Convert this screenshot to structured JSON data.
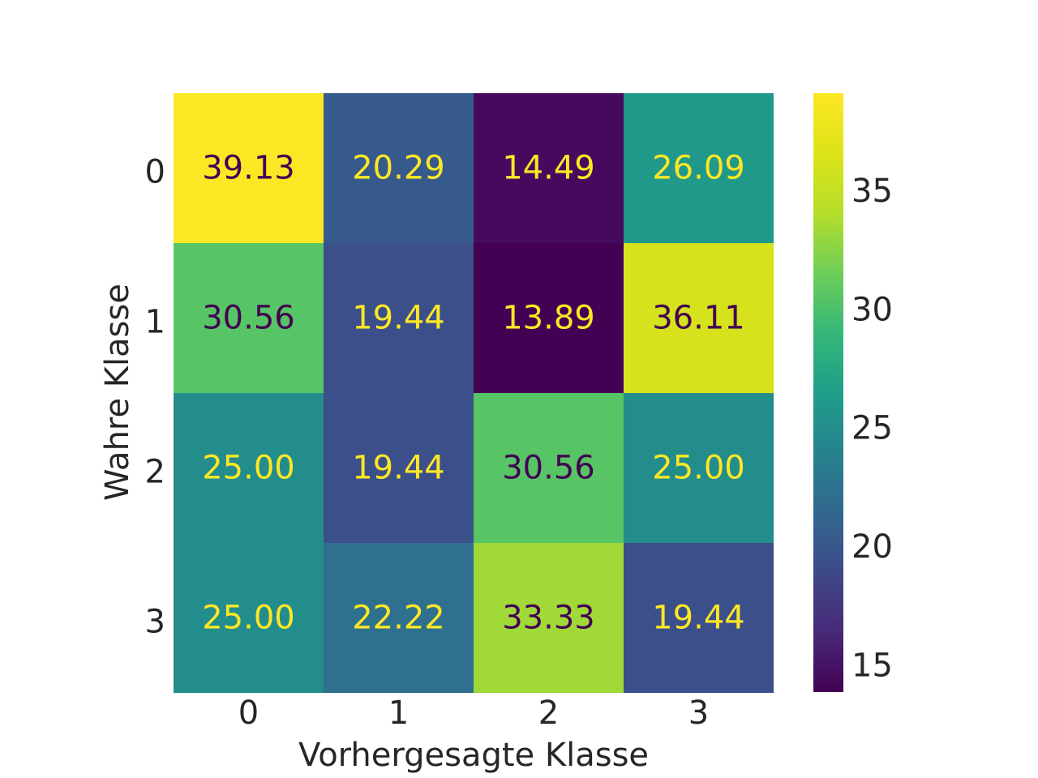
{
  "chart_data": {
    "type": "heatmap",
    "title": "",
    "xlabel": "Vorhergesagte Klasse",
    "ylabel": "Wahre Klasse",
    "x_categories": [
      "0",
      "1",
      "2",
      "3"
    ],
    "y_categories": [
      "0",
      "1",
      "2",
      "3"
    ],
    "values": [
      [
        39.13,
        20.29,
        14.49,
        26.09
      ],
      [
        30.56,
        19.44,
        13.89,
        36.11
      ],
      [
        25.0,
        19.44,
        30.56,
        25.0
      ],
      [
        25.0,
        22.22,
        33.33,
        19.44
      ]
    ],
    "value_labels": [
      [
        "39.13",
        "20.29",
        "14.49",
        "26.09"
      ],
      [
        "30.56",
        "19.44",
        "13.89",
        "36.11"
      ],
      [
        "25.00",
        "19.44",
        "30.56",
        "25.00"
      ],
      [
        "25.00",
        "22.22",
        "33.33",
        "19.44"
      ]
    ],
    "colormap": "viridis",
    "color_range": [
      13.89,
      39.13
    ],
    "colorbar": {
      "ticks": [
        15,
        20,
        25,
        30,
        35
      ],
      "tick_labels": [
        "15",
        "20",
        "25",
        "30",
        "35"
      ],
      "placement": "right"
    },
    "grid": false
  }
}
